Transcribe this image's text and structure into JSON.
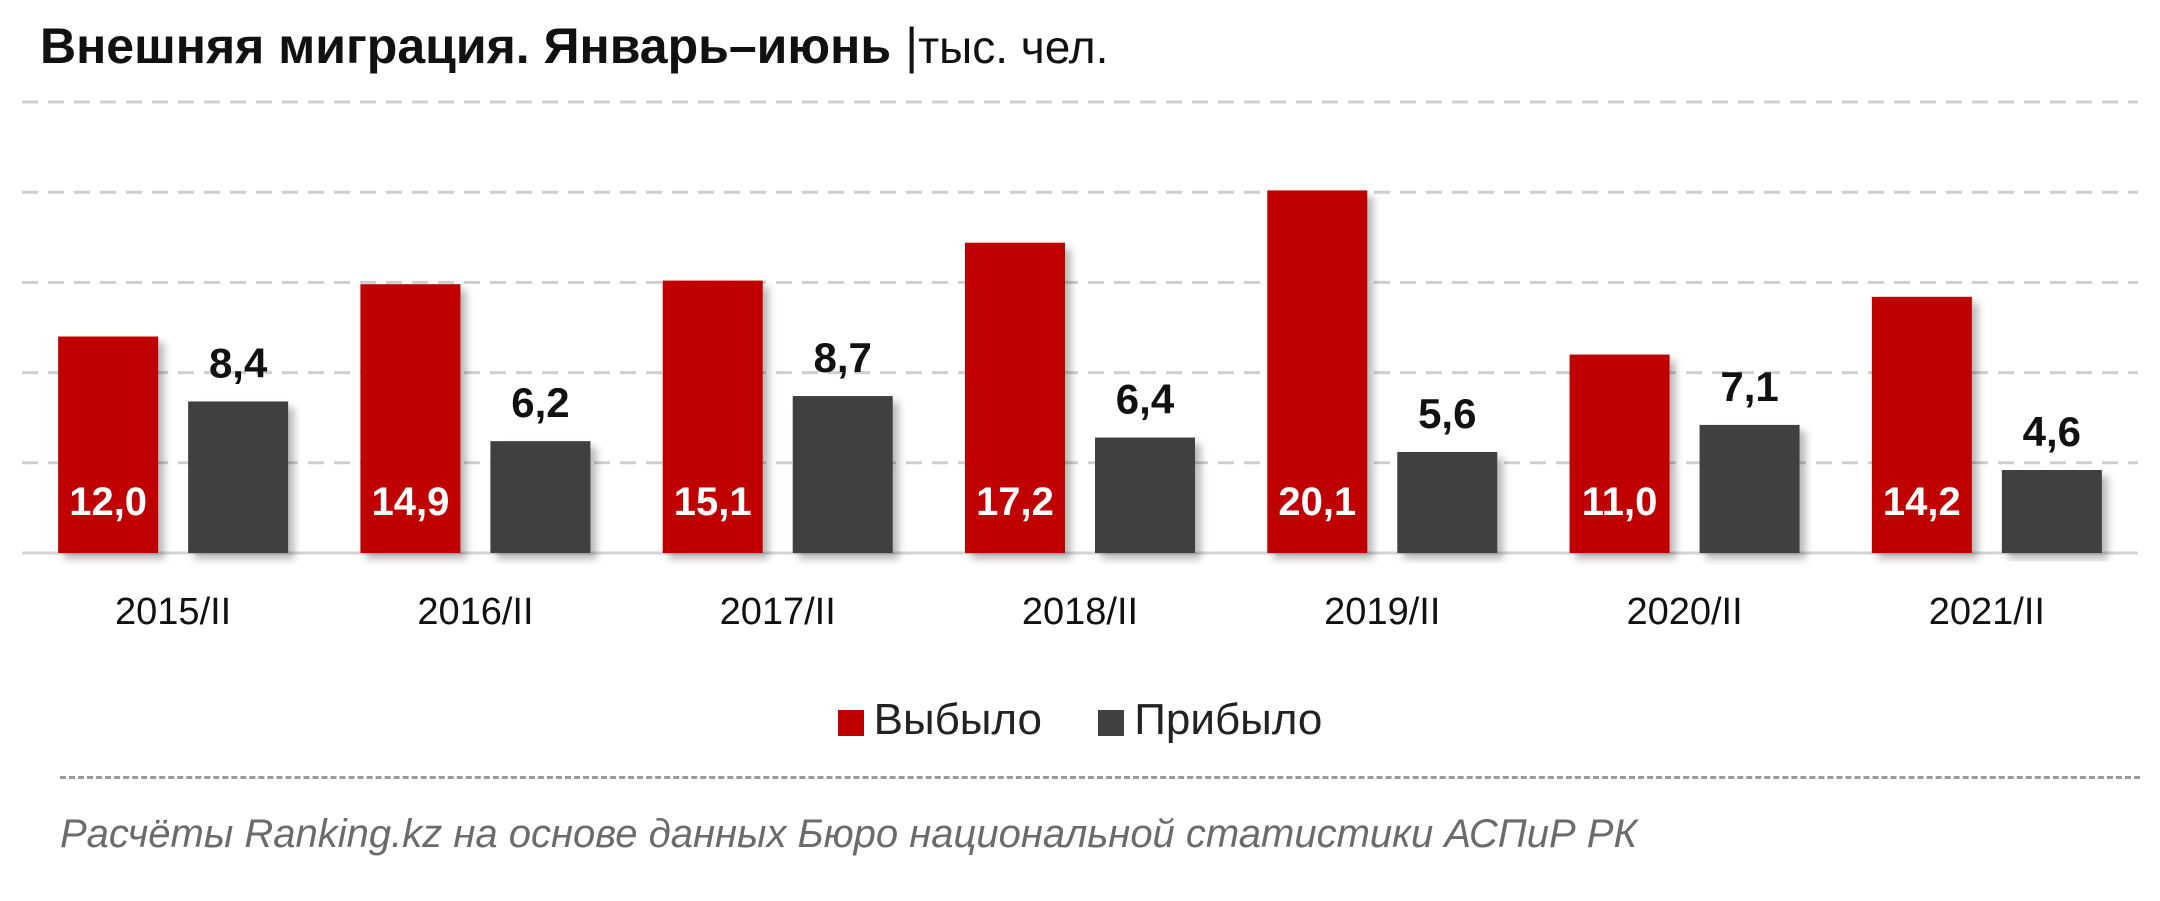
{
  "header": {
    "title": "Внешняя миграция. Январь–июнь",
    "separator": "|",
    "unit": "тыс. чел."
  },
  "chart_data": {
    "type": "bar",
    "title": "Внешняя миграция. Январь–июнь",
    "unit": "тыс. чел.",
    "categories": [
      "2015/II",
      "2016/II",
      "2017/II",
      "2018/II",
      "2019/II",
      "2020/II",
      "2021/II"
    ],
    "series": [
      {
        "name": "Выбыло",
        "color": "#c00000",
        "values": [
          12.0,
          14.9,
          15.1,
          17.2,
          20.1,
          11.0,
          14.2
        ],
        "labels": [
          "12,0",
          "14,9",
          "15,1",
          "17,2",
          "20,1",
          "11,0",
          "14,2"
        ]
      },
      {
        "name": "Прибыло",
        "color": "#404040",
        "values": [
          8.4,
          6.2,
          8.7,
          6.4,
          5.6,
          7.1,
          4.6
        ],
        "labels": [
          "8,4",
          "6,2",
          "8,7",
          "6,4",
          "5,6",
          "7,1",
          "4,6"
        ]
      }
    ],
    "ylim": [
      0,
      25
    ],
    "grid": true,
    "legend": "bottom-center"
  },
  "legend": {
    "items": [
      {
        "label": "Выбыло",
        "color": "#c00000"
      },
      {
        "label": "Прибыло",
        "color": "#404040"
      }
    ]
  },
  "footer": {
    "source": "Расчёты Ranking.kz на основе данных Бюро национальной статистики АСПиР РК"
  }
}
